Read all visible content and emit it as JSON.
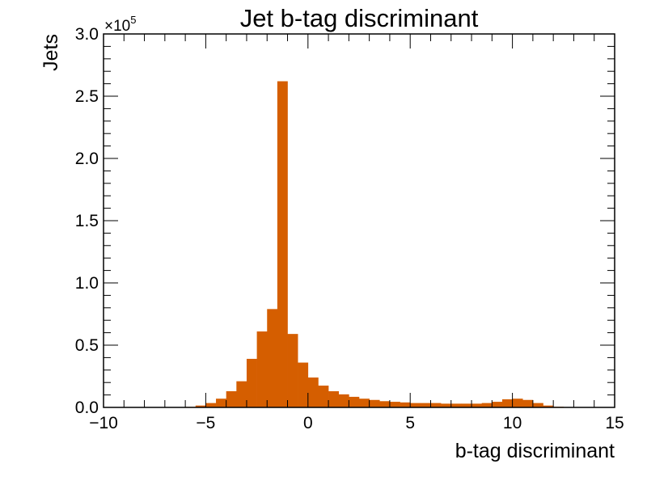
{
  "chart_data": {
    "type": "bar",
    "title": "Jet b-tag discriminant",
    "xlabel": "b-tag discriminant",
    "ylabel": "Jets",
    "xlim": [
      -10,
      15
    ],
    "ylim": [
      0,
      300000
    ],
    "y_multiplier_label": "×10",
    "y_multiplier_exponent": "5",
    "x_ticks": [
      -10,
      -5,
      0,
      5,
      10,
      15
    ],
    "x_tick_labels": [
      "−10",
      "−5",
      "0",
      "5",
      "10",
      "15"
    ],
    "y_ticks": [
      0,
      50000,
      100000,
      150000,
      200000,
      250000,
      300000
    ],
    "y_tick_labels": [
      "0.0",
      "0.5",
      "1.0",
      "1.5",
      "2.0",
      "2.5",
      "3.0"
    ],
    "grid": false,
    "bar_color": "#d55e00",
    "bin_width": 0.5,
    "bin_edges_start": -10,
    "values": [
      0,
      0,
      0,
      0,
      0,
      0,
      0,
      0,
      400,
      1500,
      3500,
      7000,
      13000,
      21000,
      39000,
      61000,
      79000,
      262000,
      59000,
      36000,
      24000,
      17500,
      13000,
      10500,
      8500,
      7000,
      6000,
      5000,
      4500,
      4000,
      3500,
      3500,
      3500,
      3000,
      3000,
      3000,
      3000,
      3500,
      4500,
      6500,
      7000,
      6000,
      3500,
      1500,
      500,
      0,
      0,
      0,
      0,
      0
    ]
  }
}
